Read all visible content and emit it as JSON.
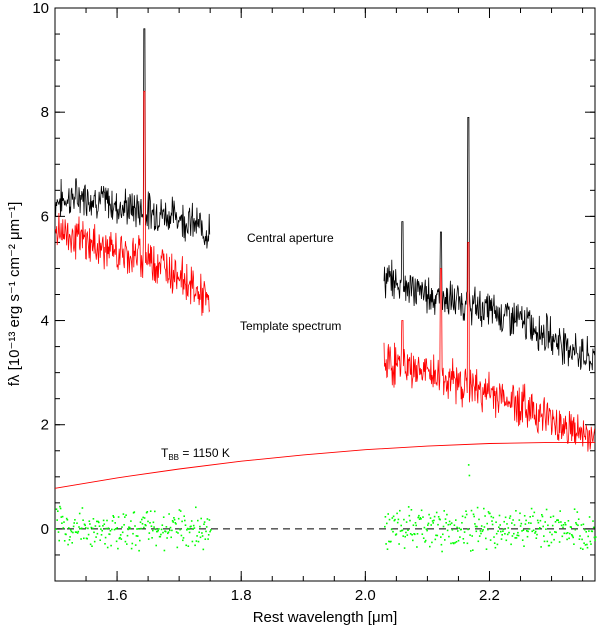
{
  "chart_data": {
    "type": "line",
    "title": "",
    "xlabel": "Rest wavelength [μm]",
    "ylabel": "fλ [10⁻¹³ erg s⁻¹ cm⁻² μm⁻¹]",
    "xlim": [
      1.5,
      2.37
    ],
    "ylim": [
      -1,
      10
    ],
    "xticks": [
      1.6,
      1.8,
      2.0,
      2.2
    ],
    "xtick_labels": [
      "1.6",
      "1.8",
      "2.0",
      "2.2"
    ],
    "yticks": [
      0,
      2,
      4,
      6,
      8,
      10
    ],
    "ytick_labels": [
      "0",
      "2",
      "4",
      "6",
      "8",
      "10"
    ],
    "zero_line": 0,
    "colors": {
      "central": "#000000",
      "template": "#ff0000",
      "blackbody": "#ff0000",
      "residual": "#00ff00",
      "zero": "#000000"
    },
    "annotations": {
      "central": "Central aperture",
      "template": "Template spectrum",
      "bb_prefix": "T",
      "bb_sub": "BB",
      "bb_value": " = 1150 K"
    },
    "series": [
      {
        "name": "Central aperture",
        "segments": [
          {
            "x": [
              1.5,
              1.55,
              1.6,
              1.65,
              1.7,
              1.75
            ],
            "y": [
              6.3,
              6.4,
              6.2,
              6.1,
              6.0,
              5.7
            ]
          },
          {
            "x": [
              2.03,
              2.1,
              2.2,
              2.25,
              2.3,
              2.37
            ],
            "y": [
              4.8,
              4.5,
              4.2,
              4.0,
              3.7,
              3.2
            ]
          }
        ],
        "lines": [
          {
            "x": 1.644,
            "peak": 9.6
          },
          {
            "x": 2.06,
            "peak": 5.9
          },
          {
            "x": 2.122,
            "peak": 5.7
          },
          {
            "x": 2.166,
            "peak": 7.9
          }
        ]
      },
      {
        "name": "Template spectrum",
        "segments": [
          {
            "x": [
              1.5,
              1.55,
              1.6,
              1.65,
              1.7,
              1.75
            ],
            "y": [
              5.8,
              5.5,
              5.3,
              5.2,
              4.9,
              4.3
            ]
          },
          {
            "x": [
              2.03,
              2.1,
              2.2,
              2.25,
              2.3,
              2.37
            ],
            "y": [
              3.2,
              3.0,
              2.6,
              2.4,
              2.1,
              1.7
            ]
          }
        ],
        "lines": [
          {
            "x": 1.644,
            "peak": 8.4
          },
          {
            "x": 2.06,
            "peak": 4.0
          },
          {
            "x": 2.122,
            "peak": 5.0
          },
          {
            "x": 2.166,
            "peak": 5.5
          }
        ]
      },
      {
        "name": "T_BB = 1150 K",
        "x": [
          1.5,
          1.6,
          1.7,
          1.8,
          1.9,
          2.0,
          2.1,
          2.2,
          2.3,
          2.37
        ],
        "y": [
          0.78,
          0.98,
          1.15,
          1.3,
          1.42,
          1.52,
          1.59,
          1.64,
          1.66,
          1.66
        ]
      },
      {
        "name": "Residuals",
        "segments": [
          {
            "x": [
              1.5,
              1.75
            ],
            "y": [
              0.0,
              0.0
            ]
          },
          {
            "x": [
              2.03,
              2.37
            ],
            "y": [
              0.0,
              0.0
            ]
          }
        ],
        "lines": [
          {
            "x": 2.166,
            "peak": 1.4
          }
        ]
      }
    ]
  }
}
